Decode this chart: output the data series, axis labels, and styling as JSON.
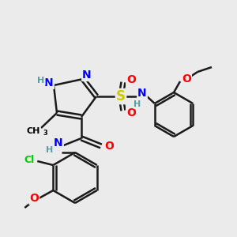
{
  "background_color": "#ebebeb",
  "bond_color": "#1a1a1a",
  "atom_colors": {
    "N": "#0000ff",
    "H": "#5a9ea0",
    "O": "#ff0000",
    "S": "#cccc00",
    "Cl": "#00cc00",
    "C": "#000000"
  },
  "bond_lw": 1.8,
  "double_sep": 0.09,
  "font_size": 10,
  "font_size_small": 8
}
